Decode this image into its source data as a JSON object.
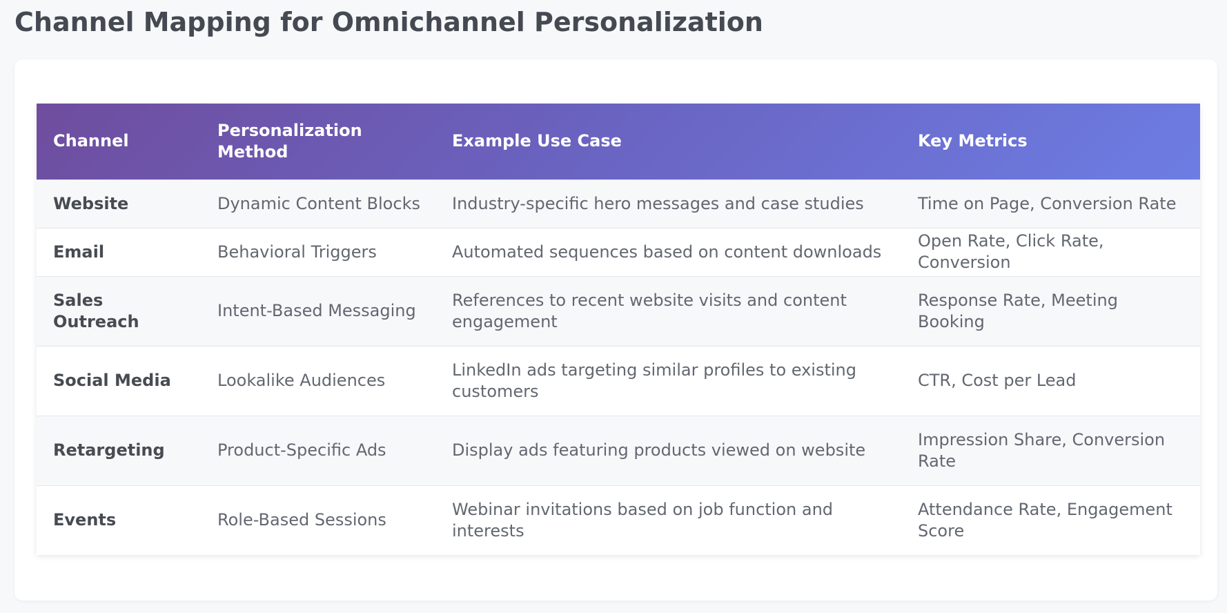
{
  "title": "Channel Mapping for Omnichannel Personalization",
  "table": {
    "headers": [
      "Channel",
      "Personalization Method",
      "Example Use Case",
      "Key Metrics"
    ],
    "rows": [
      {
        "channel": "Website",
        "method": "Dynamic Content Blocks",
        "use_case": "Industry-specific hero messages and case studies",
        "metrics": "Time on Page, Conversion Rate"
      },
      {
        "channel": "Email",
        "method": "Behavioral Triggers",
        "use_case": "Automated sequences based on content downloads",
        "metrics": "Open Rate, Click Rate, Conversion"
      },
      {
        "channel": "Sales Outreach",
        "method": "Intent-Based Messaging",
        "use_case": "References to recent website visits and content engagement",
        "metrics": "Response Rate, Meeting Booking"
      },
      {
        "channel": "Social Media",
        "method": "Lookalike Audiences",
        "use_case": "LinkedIn ads targeting similar profiles to existing customers",
        "metrics": "CTR, Cost per Lead"
      },
      {
        "channel": "Retargeting",
        "method": "Product-Specific Ads",
        "use_case": "Display ads featuring products viewed on website",
        "metrics": "Impression Share, Conversion Rate"
      },
      {
        "channel": "Events",
        "method": "Role-Based Sessions",
        "use_case": "Webinar invitations based on job function and interests",
        "metrics": "Attendance Rate, Engagement Score"
      }
    ]
  },
  "colors": {
    "header_gradient_start": "#6f4d9e",
    "header_gradient_end": "#6d7de3",
    "page_background": "#f7f8fa"
  }
}
